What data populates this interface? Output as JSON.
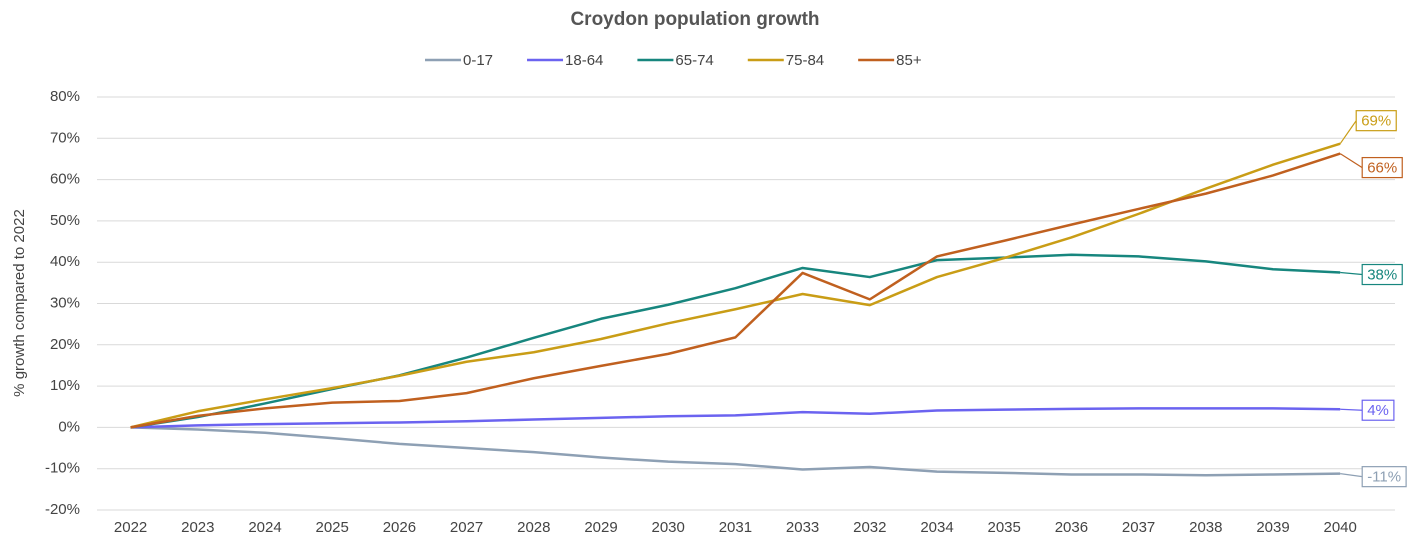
{
  "chart_data": {
    "type": "line",
    "title": "Croydon population growth",
    "ylabel": "% growth compared to 2022",
    "categories": [
      "2022",
      "2023",
      "2024",
      "2025",
      "2026",
      "2027",
      "2028",
      "2029",
      "2030",
      "2031",
      "2033",
      "2032",
      "2034",
      "2035",
      "2036",
      "2037",
      "2038",
      "2039",
      "2040"
    ],
    "ylim": [
      -20,
      80
    ],
    "yticks": [
      {
        "value": -20,
        "label": "-20%"
      },
      {
        "value": -10,
        "label": "-10%"
      },
      {
        "value": 0,
        "label": "0%"
      },
      {
        "value": 10,
        "label": "10%"
      },
      {
        "value": 20,
        "label": "20%"
      },
      {
        "value": 30,
        "label": "30%"
      },
      {
        "value": 40,
        "label": "40%"
      },
      {
        "value": 50,
        "label": "50%"
      },
      {
        "value": 60,
        "label": "60%"
      },
      {
        "value": 70,
        "label": "70%"
      },
      {
        "value": 80,
        "label": "80%"
      }
    ],
    "grid": true,
    "legend": "top",
    "series": [
      {
        "name": "0-17",
        "color": "#8ea0b4",
        "values": [
          0,
          -0.5,
          -1.3,
          -2.6,
          -4,
          -5,
          -6,
          -7.3,
          -8.3,
          -8.9,
          -10.2,
          -9.6,
          -10.7,
          -11,
          -11.4,
          -11.4,
          -11.6,
          -11.4,
          -11.2
        ],
        "value_labels": [
          null,
          null,
          null,
          null,
          null,
          null,
          null,
          null,
          null,
          null,
          null,
          null,
          null,
          null,
          null,
          null,
          null,
          null,
          "-11%"
        ]
      },
      {
        "name": "18-64",
        "color": "#6b63f0",
        "values": [
          0,
          0.5,
          0.8,
          1.0,
          1.2,
          1.5,
          1.9,
          2.3,
          2.7,
          2.9,
          3.7,
          3.3,
          4.1,
          4.3,
          4.5,
          4.6,
          4.6,
          4.6,
          4.4
        ],
        "value_labels": [
          null,
          null,
          null,
          null,
          null,
          null,
          null,
          null,
          null,
          null,
          null,
          null,
          null,
          null,
          null,
          null,
          null,
          null,
          "4%"
        ]
      },
      {
        "name": "65-74",
        "color": "#17867e",
        "values": [
          0,
          2.5,
          5.8,
          9.3,
          12.6,
          16.9,
          21.7,
          26.3,
          29.7,
          33.7,
          38.6,
          36.4,
          40.5,
          41.1,
          41.8,
          41.4,
          40.2,
          38.3,
          37.5
        ],
        "value_labels": [
          null,
          null,
          null,
          null,
          null,
          null,
          null,
          null,
          null,
          null,
          null,
          null,
          null,
          null,
          null,
          null,
          null,
          null,
          "38%"
        ]
      },
      {
        "name": "75-84",
        "color": "#c99d16",
        "values": [
          0,
          3.9,
          6.8,
          9.5,
          12.5,
          15.9,
          18.2,
          21.4,
          25.2,
          28.6,
          32.3,
          29.6,
          36.4,
          41.0,
          46.0,
          51.7,
          57.8,
          63.6,
          68.7
        ],
        "value_labels": [
          null,
          null,
          null,
          null,
          null,
          null,
          null,
          null,
          null,
          null,
          null,
          null,
          null,
          null,
          null,
          null,
          null,
          null,
          "69%"
        ]
      },
      {
        "name": "85+",
        "color": "#c0601f",
        "values": [
          0,
          2.8,
          4.6,
          6.0,
          6.4,
          8.3,
          11.9,
          14.9,
          17.8,
          21.8,
          37.4,
          31.0,
          41.4,
          45.2,
          49.1,
          52.9,
          56.6,
          61.0,
          66.3
        ],
        "value_labels": [
          null,
          null,
          null,
          null,
          null,
          null,
          null,
          null,
          null,
          null,
          null,
          null,
          null,
          null,
          null,
          null,
          null,
          null,
          "66%"
        ]
      }
    ]
  }
}
